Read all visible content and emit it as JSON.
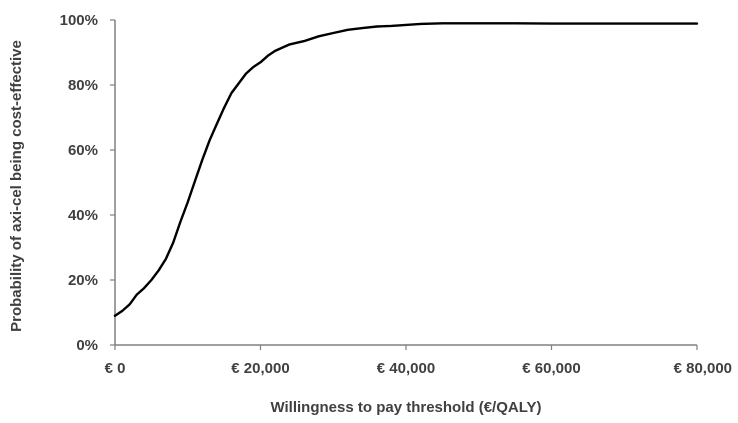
{
  "chart_data": {
    "type": "line",
    "title": "",
    "xlabel": "Willingness to pay threshold (€/QALY)",
    "ylabel": "Probability of axi-cel being cost-effective",
    "xlim": [
      0,
      80000
    ],
    "ylim": [
      0,
      100
    ],
    "x_ticks": [
      0,
      20000,
      40000,
      60000,
      80000
    ],
    "x_tick_labels": [
      "€ 0",
      "€ 20,000",
      "€ 40,000",
      "€ 60,000",
      "€ 80,000"
    ],
    "y_ticks": [
      0,
      20,
      40,
      60,
      80,
      100
    ],
    "y_tick_labels": [
      "0%",
      "20%",
      "40%",
      "60%",
      "80%",
      "100%"
    ],
    "grid": false,
    "legend": "none",
    "series": [
      {
        "color": "#000000",
        "x": [
          0,
          1000,
          2000,
          3000,
          4000,
          5000,
          6000,
          7000,
          8000,
          9000,
          10000,
          11000,
          12000,
          13000,
          14000,
          15000,
          16000,
          17000,
          18000,
          19000,
          20000,
          21000,
          22000,
          24000,
          26000,
          28000,
          30000,
          32000,
          34000,
          36000,
          38000,
          40000,
          42000,
          45000,
          50000,
          55000,
          60000,
          70000,
          80000
        ],
        "y": [
          9,
          10.5,
          12.5,
          15.5,
          17.5,
          20,
          23,
          26.5,
          31.5,
          38,
          44,
          50.5,
          57,
          63,
          68,
          73,
          77.5,
          80.5,
          83.5,
          85.5,
          87,
          89,
          90.5,
          92.5,
          93.5,
          95,
          96,
          97,
          97.5,
          98,
          98.2,
          98.5,
          98.8,
          99,
          99,
          99,
          98.9,
          98.9,
          98.9
        ]
      }
    ]
  }
}
